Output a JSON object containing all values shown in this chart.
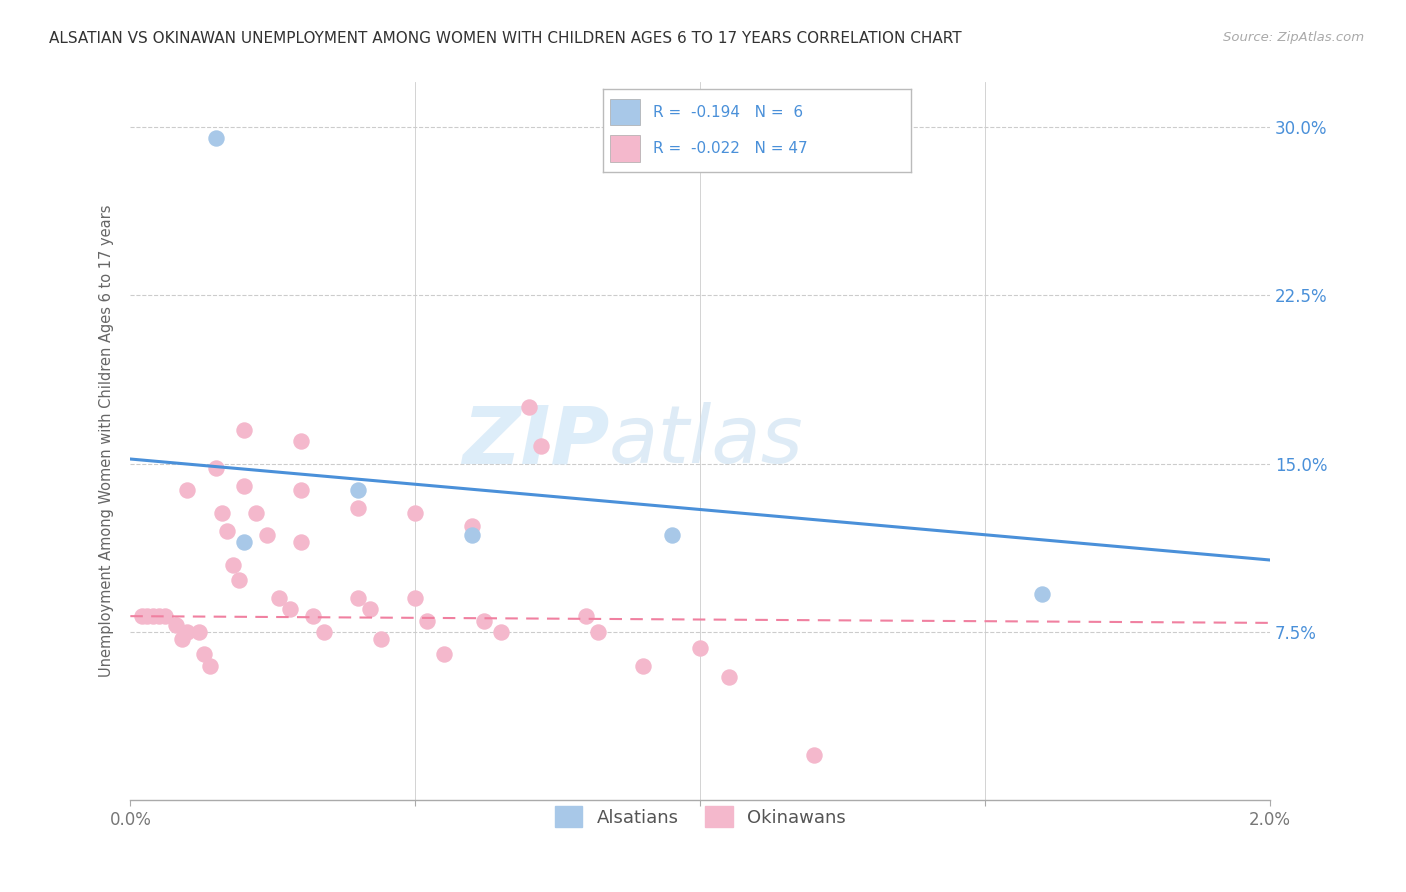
{
  "title": "ALSATIAN VS OKINAWAN UNEMPLOYMENT AMONG WOMEN WITH CHILDREN AGES 6 TO 17 YEARS CORRELATION CHART",
  "source": "Source: ZipAtlas.com",
  "ylabel": "Unemployment Among Women with Children Ages 6 to 17 years",
  "xlim": [
    0.0,
    0.02
  ],
  "ylim": [
    0.0,
    0.32
  ],
  "xticks": [
    0.0,
    0.005,
    0.01,
    0.015,
    0.02
  ],
  "xticklabels": [
    "0.0%",
    "",
    "",
    "",
    "2.0%"
  ],
  "yticks_right": [
    0.0,
    0.075,
    0.15,
    0.225,
    0.3
  ],
  "yticklabels_right": [
    "",
    "7.5%",
    "15.0%",
    "22.5%",
    "30.0%"
  ],
  "background_color": "#ffffff",
  "grid_color": "#cccccc",
  "alsatian_dot_color": "#a8c8e8",
  "okinawan_dot_color": "#f4b8cc",
  "alsatian_line_color": "#4a90d9",
  "okinawan_line_color": "#f080a0",
  "alsatian_R": -0.194,
  "alsatian_N": 6,
  "okinawan_R": -0.022,
  "okinawan_N": 47,
  "als_line_x0": 0.0,
  "als_line_y0": 0.152,
  "als_line_x1": 0.02,
  "als_line_y1": 0.107,
  "ok_line_x0": 0.0,
  "ok_line_y0": 0.082,
  "ok_line_x1": 0.02,
  "ok_line_y1": 0.079,
  "alsatian_points_x": [
    0.0015,
    0.002,
    0.004,
    0.006,
    0.0095,
    0.016
  ],
  "alsatian_points_y": [
    0.295,
    0.115,
    0.138,
    0.118,
    0.118,
    0.092
  ],
  "okinawan_points_x": [
    0.0002,
    0.0003,
    0.0004,
    0.0005,
    0.0006,
    0.0008,
    0.0009,
    0.001,
    0.001,
    0.0012,
    0.0013,
    0.0014,
    0.0015,
    0.0016,
    0.0017,
    0.0018,
    0.0019,
    0.002,
    0.002,
    0.0022,
    0.0024,
    0.0026,
    0.0028,
    0.003,
    0.003,
    0.003,
    0.0032,
    0.0034,
    0.004,
    0.004,
    0.0042,
    0.0044,
    0.005,
    0.005,
    0.0052,
    0.0055,
    0.006,
    0.0062,
    0.0065,
    0.007,
    0.0072,
    0.008,
    0.0082,
    0.009,
    0.01,
    0.0105,
    0.012
  ],
  "okinawan_points_y": [
    0.082,
    0.082,
    0.082,
    0.082,
    0.082,
    0.078,
    0.072,
    0.138,
    0.075,
    0.075,
    0.065,
    0.06,
    0.148,
    0.128,
    0.12,
    0.105,
    0.098,
    0.165,
    0.14,
    0.128,
    0.118,
    0.09,
    0.085,
    0.16,
    0.138,
    0.115,
    0.082,
    0.075,
    0.13,
    0.09,
    0.085,
    0.072,
    0.128,
    0.09,
    0.08,
    0.065,
    0.122,
    0.08,
    0.075,
    0.175,
    0.158,
    0.082,
    0.075,
    0.06,
    0.068,
    0.055,
    0.02
  ]
}
